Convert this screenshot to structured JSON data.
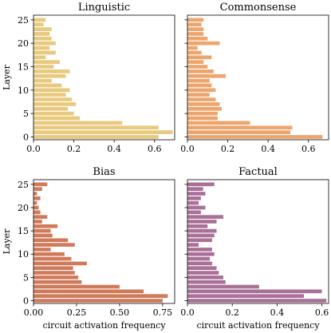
{
  "chart_data": [
    {
      "type": "bar",
      "orientation": "horizontal",
      "title": "Linguistic",
      "color": "#e8c97d",
      "ylabel": "Layer",
      "xlabel": "",
      "xlim": [
        0,
        0.7
      ],
      "ylim": [
        -0.6,
        26
      ],
      "xticks": [
        0.0,
        0.2,
        0.4,
        0.6
      ],
      "xtick_labels": [
        "0.0",
        "0.2",
        "0.4",
        "0.6"
      ],
      "yticks": [
        0,
        5,
        10,
        15,
        20,
        25
      ],
      "ytick_labels": [
        "0",
        "5",
        "10",
        "15",
        "20",
        "25"
      ],
      "show_yticklabels": true,
      "categories": [
        0,
        1,
        2,
        3,
        4,
        5,
        6,
        7,
        8,
        9,
        10,
        11,
        12,
        13,
        14,
        15,
        16,
        17,
        18,
        19,
        20,
        21,
        22,
        23,
        24,
        25
      ],
      "values": [
        0.62,
        0.69,
        0.62,
        0.44,
        0.23,
        0.2,
        0.17,
        0.21,
        0.19,
        0.16,
        0.18,
        0.14,
        0.09,
        0.16,
        0.18,
        0.1,
        0.13,
        0.06,
        0.11,
        0.08,
        0.11,
        0.09,
        0.08,
        0.09,
        0.05,
        0.06
      ]
    },
    {
      "type": "bar",
      "orientation": "horizontal",
      "title": "Commonsense",
      "color": "#eda56e",
      "ylabel": "",
      "xlabel": "",
      "xlim": [
        0,
        0.7
      ],
      "ylim": [
        -0.6,
        26
      ],
      "xticks": [
        0.0,
        0.2,
        0.4,
        0.6
      ],
      "xtick_labels": [
        "0.0",
        "0.2",
        "0.4",
        "0.6"
      ],
      "yticks": [
        0,
        5,
        10,
        15,
        20,
        25
      ],
      "ytick_labels": [
        "0",
        "5",
        "10",
        "15",
        "20",
        "25"
      ],
      "show_yticklabels": false,
      "categories": [
        0,
        1,
        2,
        3,
        4,
        5,
        6,
        7,
        8,
        9,
        10,
        11,
        12,
        13,
        14,
        15,
        16,
        17,
        18,
        19,
        20,
        21,
        22,
        23,
        24,
        25
      ],
      "values": [
        0.67,
        0.51,
        0.52,
        0.31,
        0.15,
        0.15,
        0.17,
        0.16,
        0.14,
        0.11,
        0.14,
        0.12,
        0.11,
        0.19,
        0.13,
        0.1,
        0.08,
        0.12,
        0.07,
        0.05,
        0.16,
        0.1,
        0.08,
        0.08,
        0.07,
        0.08
      ]
    },
    {
      "type": "bar",
      "orientation": "horizontal",
      "title": "Bias",
      "color": "#d07a5a",
      "ylabel": "Layer",
      "xlabel": "circuit activation frequency",
      "xlim": [
        0,
        0.82
      ],
      "ylim": [
        -0.6,
        26
      ],
      "xticks": [
        0.0,
        0.25,
        0.5,
        0.75
      ],
      "xtick_labels": [
        "0.00",
        "0.25",
        "0.50",
        "0.75"
      ],
      "yticks": [
        0,
        5,
        10,
        15,
        20,
        25
      ],
      "ytick_labels": [
        "0",
        "5",
        "10",
        "15",
        "20",
        "25"
      ],
      "show_yticklabels": true,
      "categories": [
        0,
        1,
        2,
        3,
        4,
        5,
        6,
        7,
        8,
        9,
        10,
        11,
        12,
        13,
        14,
        15,
        16,
        17,
        18,
        19,
        20,
        21,
        22,
        23,
        24,
        25
      ],
      "values": [
        0.75,
        0.78,
        0.64,
        0.5,
        0.28,
        0.26,
        0.24,
        0.23,
        0.31,
        0.22,
        0.18,
        0.1,
        0.24,
        0.2,
        0.11,
        0.1,
        0.14,
        0.05,
        0.08,
        0.04,
        0.03,
        0.02,
        0.04,
        0.02,
        0.05,
        0.08
      ]
    },
    {
      "type": "bar",
      "orientation": "horizontal",
      "title": "Factual",
      "color": "#a97098",
      "ylabel": "",
      "xlabel": "circuit activation frequency",
      "xlim": [
        0,
        0.63
      ],
      "ylim": [
        -0.6,
        26
      ],
      "xticks": [
        0.0,
        0.2,
        0.4,
        0.6
      ],
      "xtick_labels": [
        "0.0",
        "0.2",
        "0.4",
        "0.6"
      ],
      "yticks": [
        0,
        5,
        10,
        15,
        20,
        25
      ],
      "ytick_labels": [
        "0",
        "5",
        "10",
        "15",
        "20",
        "25"
      ],
      "show_yticklabels": false,
      "categories": [
        0,
        1,
        2,
        3,
        4,
        5,
        6,
        7,
        8,
        9,
        10,
        11,
        12,
        13,
        14,
        15,
        16,
        17,
        18,
        19,
        20,
        21,
        22,
        23,
        24,
        25
      ],
      "values": [
        0.62,
        0.52,
        0.6,
        0.32,
        0.17,
        0.16,
        0.14,
        0.13,
        0.11,
        0.1,
        0.12,
        0.11,
        0.05,
        0.11,
        0.12,
        0.13,
        0.09,
        0.13,
        0.16,
        0.06,
        0.08,
        0.05,
        0.06,
        0.08,
        0.07,
        0.12
      ]
    }
  ]
}
